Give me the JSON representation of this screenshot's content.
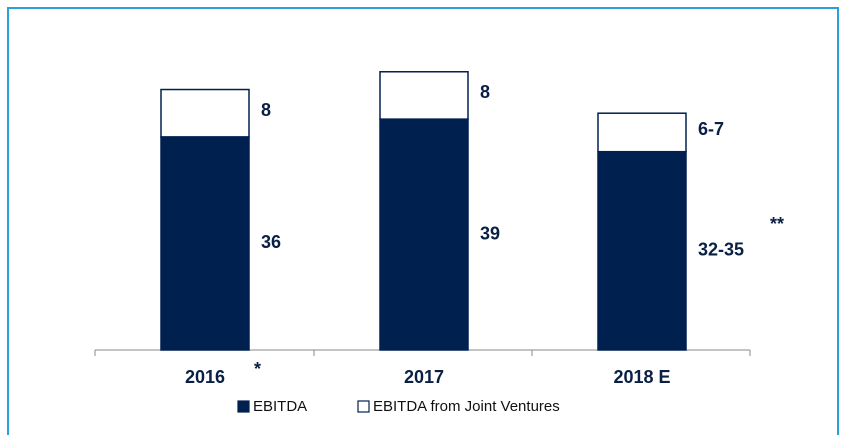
{
  "chart_data": {
    "type": "stacked-bar",
    "categories": [
      "2016",
      "2017",
      "2018 E"
    ],
    "series": [
      {
        "name": "EBITDA",
        "color": "#002050",
        "values": [
          36,
          39,
          33.5
        ],
        "value_labels": [
          "36",
          "39",
          "32-35"
        ]
      },
      {
        "name": "EBITDA from Joint Ventures",
        "color": "#ffffff",
        "values": [
          8,
          8,
          6.5
        ],
        "value_labels": [
          "8",
          "8",
          "6-7"
        ]
      }
    ],
    "annotations": [
      "*",
      "**"
    ],
    "ylim": [
      0,
      50
    ]
  }
}
